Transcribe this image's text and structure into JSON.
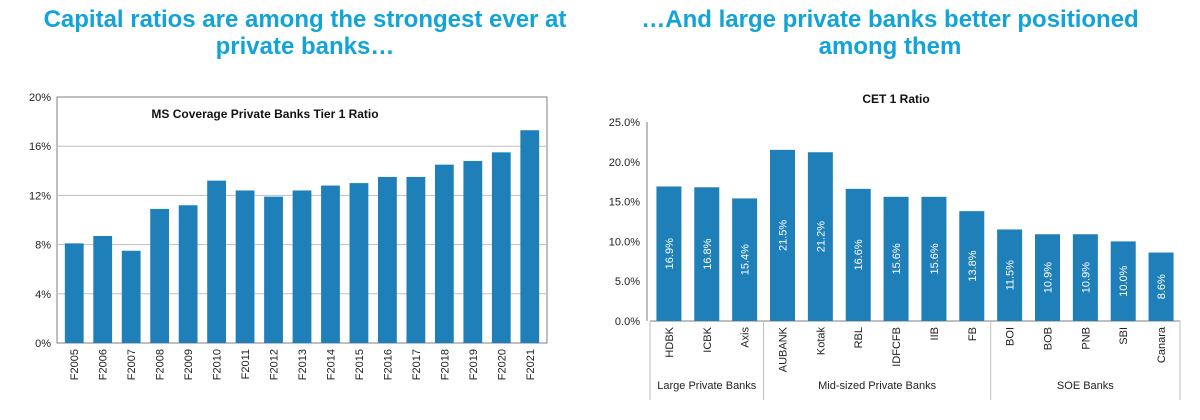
{
  "left_panel": {
    "title": "Capital ratios are among the strongest ever at private banks…"
  },
  "right_panel": {
    "title": "…And large private banks better positioned among them"
  },
  "colors": {
    "title": "#12a3d8",
    "bar": "#1f7fb8",
    "grid": "#bfbfbf",
    "axis": "#7f7f7f"
  },
  "chart_data": [
    {
      "type": "bar",
      "title": "MS Coverage Private Banks Tier 1 Ratio",
      "xlabel": "",
      "ylabel": "",
      "ylim": [
        0,
        20
      ],
      "yticks": [
        "0%",
        "4%",
        "8%",
        "12%",
        "16%",
        "20%"
      ],
      "ytick_values": [
        0,
        4,
        8,
        12,
        16,
        20
      ],
      "categories": [
        "F2005",
        "F2006",
        "F2007",
        "F2008",
        "F2009",
        "F2010",
        "F2011",
        "F2012",
        "F2013",
        "F2014",
        "F2015",
        "F2016",
        "F2017",
        "F2018",
        "F2019",
        "F2020",
        "F2021"
      ],
      "values": [
        8.1,
        8.7,
        7.5,
        10.9,
        11.2,
        13.2,
        12.4,
        11.9,
        12.4,
        12.8,
        13.0,
        13.5,
        13.5,
        14.5,
        14.8,
        15.5,
        17.3
      ],
      "grid": true
    },
    {
      "type": "bar",
      "title": "CET 1 Ratio",
      "ylim": [
        0,
        25
      ],
      "yticks": [
        "0.0%",
        "5.0%",
        "10.0%",
        "15.0%",
        "20.0%",
        "25.0%"
      ],
      "ytick_values": [
        0,
        5,
        10,
        15,
        20,
        25
      ],
      "categories": [
        "HDBK",
        "ICBK",
        "Axis",
        "AUBANK",
        "Kotak",
        "RBL",
        "IDFCFB",
        "IIB",
        "FB",
        "BOI",
        "BOB",
        "PNB",
        "SBI",
        "Canara"
      ],
      "values": [
        16.9,
        16.8,
        15.4,
        21.5,
        21.2,
        16.6,
        15.6,
        15.6,
        13.8,
        11.5,
        10.9,
        10.9,
        10.0,
        8.6
      ],
      "data_labels": [
        "16.9%",
        "16.8%",
        "15.4%",
        "21.5%",
        "21.2%",
        "16.6%",
        "15.6%",
        "15.6%",
        "13.8%",
        "11.5%",
        "10.9%",
        "10.9%",
        "10.0%",
        "8.6%"
      ],
      "groups": [
        {
          "label": "Large Private Banks",
          "start": 0,
          "end": 2
        },
        {
          "label": "Mid-sized Private Banks",
          "start": 3,
          "end": 8
        },
        {
          "label": "SOE Banks",
          "start": 9,
          "end": 13
        }
      ],
      "grid": false
    }
  ]
}
